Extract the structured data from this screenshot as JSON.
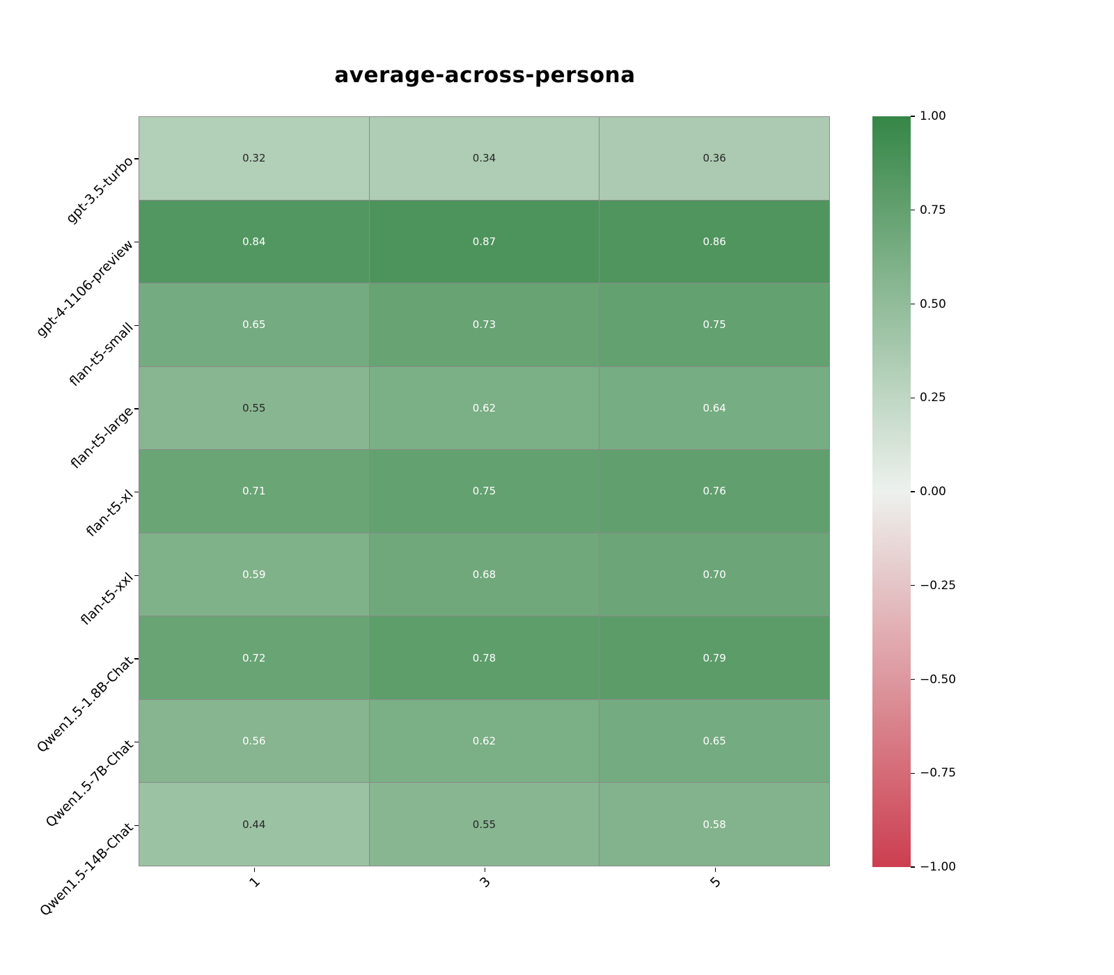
{
  "title": "average-across-persona",
  "chart_data": {
    "type": "heatmap",
    "title": "average-across-persona",
    "rows": [
      "gpt-3.5-turbo",
      "gpt-4-1106-preview",
      "flan-t5-small",
      "flan-t5-large",
      "flan-t5-xl",
      "flan-t5-xxl",
      "Qwen1.5-1.8B-Chat",
      "Qwen1.5-7B-Chat",
      "Qwen1.5-14B-Chat"
    ],
    "columns": [
      "1",
      "3",
      "5"
    ],
    "values": [
      [
        0.32,
        0.34,
        0.36
      ],
      [
        0.84,
        0.87,
        0.86
      ],
      [
        0.65,
        0.73,
        0.75
      ],
      [
        0.55,
        0.62,
        0.64
      ],
      [
        0.71,
        0.75,
        0.76
      ],
      [
        0.59,
        0.68,
        0.7
      ],
      [
        0.72,
        0.78,
        0.79
      ],
      [
        0.56,
        0.62,
        0.65
      ],
      [
        0.44,
        0.55,
        0.58
      ]
    ],
    "value_format": "2dp",
    "vmin": -1.0,
    "vmax": 1.0,
    "colorbar_ticks": [
      "1.00",
      "0.75",
      "0.50",
      "0.25",
      "0.00",
      "−0.25",
      "−0.50",
      "−0.75",
      "−1.00"
    ],
    "colorbar_tick_values": [
      1.0,
      0.75,
      0.5,
      0.25,
      0.0,
      -0.25,
      -0.5,
      -0.75,
      -1.0
    ],
    "legend_position": "right",
    "grid": true,
    "colors": {
      "positive_max": "#358646",
      "zero": "#edf1ed",
      "negative_min": "#cc3e50",
      "annot_dark": "#262626",
      "annot_light": "#ffffff",
      "gridline": "#8a8a8a"
    }
  }
}
